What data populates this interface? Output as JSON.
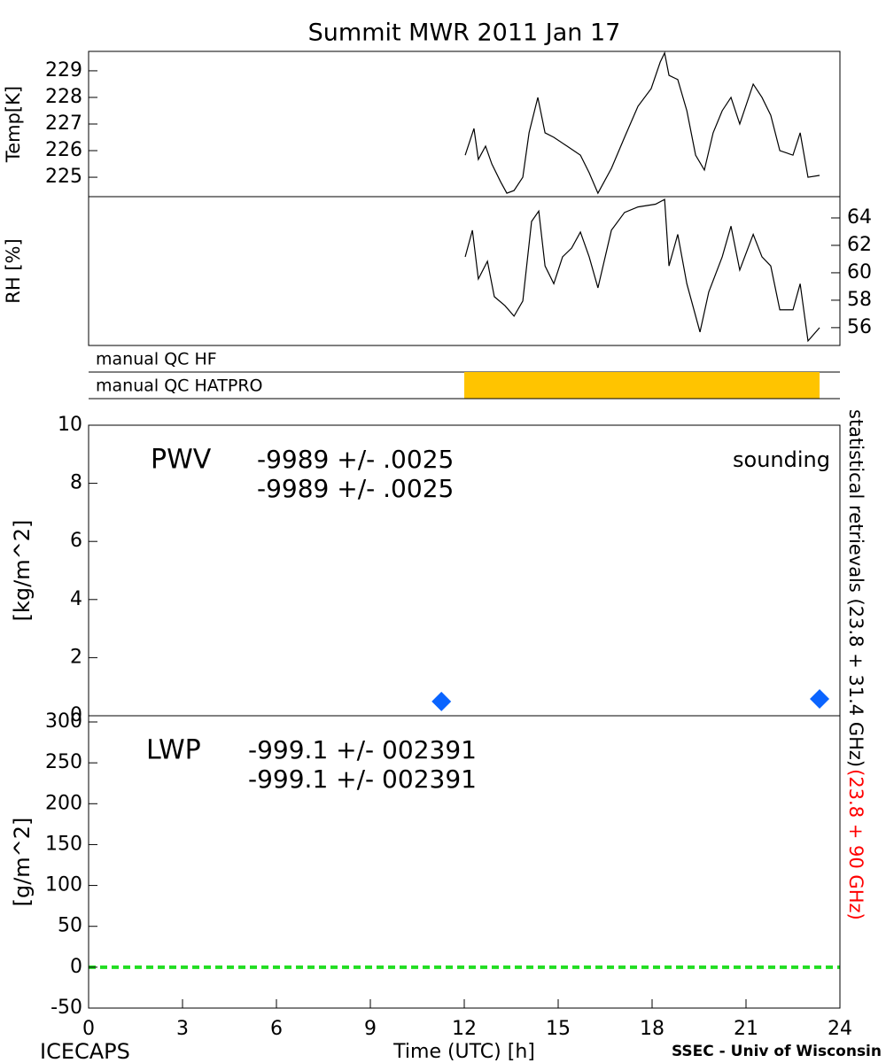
{
  "chart_data": [
    {
      "type": "line",
      "title": "Summit MWR 2011 Jan 17",
      "ylabel": "Temp[K]",
      "yaxis_side": "left",
      "color": "#000000",
      "x": [
        12.03,
        12.31,
        12.45,
        12.68,
        12.88,
        13.16,
        13.36,
        13.59,
        13.87,
        14.07,
        14.35,
        14.58,
        14.86,
        15.28,
        15.71,
        15.99,
        16.27,
        16.7,
        17.12,
        17.55,
        17.97,
        18.26,
        18.4,
        18.54,
        18.82,
        19.11,
        19.39,
        19.67,
        19.95,
        20.24,
        20.52,
        20.8,
        21.23,
        21.51,
        21.79,
        22.08,
        22.5,
        22.73,
        22.98,
        23.35
      ],
      "values": [
        225.83,
        226.83,
        225.67,
        226.17,
        225.5,
        224.83,
        224.4,
        224.5,
        225.0,
        226.67,
        228.0,
        226.67,
        226.5,
        226.17,
        225.83,
        225.17,
        224.4,
        225.33,
        226.5,
        227.67,
        228.33,
        229.33,
        229.67,
        228.83,
        228.67,
        227.5,
        225.83,
        225.27,
        226.67,
        227.5,
        228.0,
        227.0,
        228.5,
        228.0,
        227.33,
        226.0,
        225.83,
        226.67,
        225.0,
        225.07
      ],
      "xlim": [
        0,
        24
      ],
      "ylim": [
        224.27,
        229.73
      ],
      "yticks": [
        225,
        226,
        227,
        228,
        229
      ]
    },
    {
      "type": "line",
      "ylabel": "RH [%]",
      "yaxis_side": "right",
      "color": "#000000",
      "x": [
        12.03,
        12.26,
        12.45,
        12.74,
        12.96,
        13.3,
        13.59,
        13.87,
        14.15,
        14.38,
        14.58,
        14.86,
        15.14,
        15.43,
        15.71,
        15.99,
        16.27,
        16.7,
        17.12,
        17.55,
        18.11,
        18.4,
        18.54,
        18.82,
        19.11,
        19.53,
        19.81,
        20.24,
        20.52,
        20.8,
        21.23,
        21.51,
        21.79,
        22.08,
        22.5,
        22.73,
        22.98,
        23.35
      ],
      "values": [
        61.16,
        63.1,
        59.55,
        60.84,
        58.26,
        57.6,
        56.84,
        57.94,
        63.74,
        64.5,
        60.5,
        59.2,
        61.16,
        61.8,
        62.97,
        61.16,
        58.9,
        63.1,
        64.4,
        64.8,
        65.0,
        65.35,
        60.5,
        62.8,
        59.2,
        55.68,
        58.6,
        61.16,
        63.4,
        60.2,
        62.8,
        61.16,
        60.5,
        57.3,
        57.3,
        59.2,
        55.03,
        56.0
      ],
      "xlim": [
        0,
        24
      ],
      "ylim": [
        54.7,
        65.55
      ],
      "yticks": [
        56,
        58,
        60,
        62,
        64
      ]
    },
    {
      "type": "flags",
      "xlim": [
        0,
        24
      ],
      "rows": [
        {
          "name": "manual QC HF"
        },
        {
          "name": "manual QC HATPRO",
          "color": "#ffc400",
          "spans": [
            [
              12,
              23.35
            ]
          ]
        }
      ]
    },
    {
      "type": "scatter",
      "label": "PWV",
      "ylabel": "[kg/m^2]",
      "yaxis_side": "left",
      "stats": [
        {
          "text": "-9989 +/- .0025",
          "color": "#000000"
        },
        {
          "text": "-9989 +/- .0025",
          "color": "#ff0000"
        }
      ],
      "series": [
        {
          "name": "sounding",
          "color": "#0a64ff",
          "x": [
            11.27,
            23.35
          ],
          "values": [
            0.49,
            0.58
          ]
        }
      ],
      "xlim": [
        0,
        24
      ],
      "ylim": [
        0,
        10
      ],
      "yticks": [
        0,
        2,
        4,
        6,
        8,
        10
      ]
    },
    {
      "type": "line",
      "label": "LWP",
      "ylabel": "[g/m^2]",
      "yaxis_side": "left",
      "xlabel": "Time (UTC) [h]",
      "stats": [
        {
          "text": "-999.1 +/- 002391",
          "color": "#000000"
        },
        {
          "text": "-999.1 +/- 002391",
          "color": "#ff0000"
        }
      ],
      "hline": {
        "value": 0,
        "color": "#22dd22"
      },
      "xlim": [
        0,
        24
      ],
      "xticks": [
        0,
        3,
        6,
        9,
        12,
        15,
        18,
        21,
        24
      ],
      "ylim": [
        -50,
        307.6
      ],
      "yticks": [
        -50,
        0,
        50,
        100,
        150,
        200,
        250,
        300
      ]
    }
  ],
  "side_labels": [
    {
      "text": "statistical retrievals (23.8 + 31.4 GHz)",
      "color": "#000000"
    },
    {
      "text": "(23.8 + 90 GHz)",
      "color": "#ff0000"
    }
  ],
  "footer": {
    "left": "ICECAPS",
    "right": "SSEC - Univ of Wisconsin"
  }
}
